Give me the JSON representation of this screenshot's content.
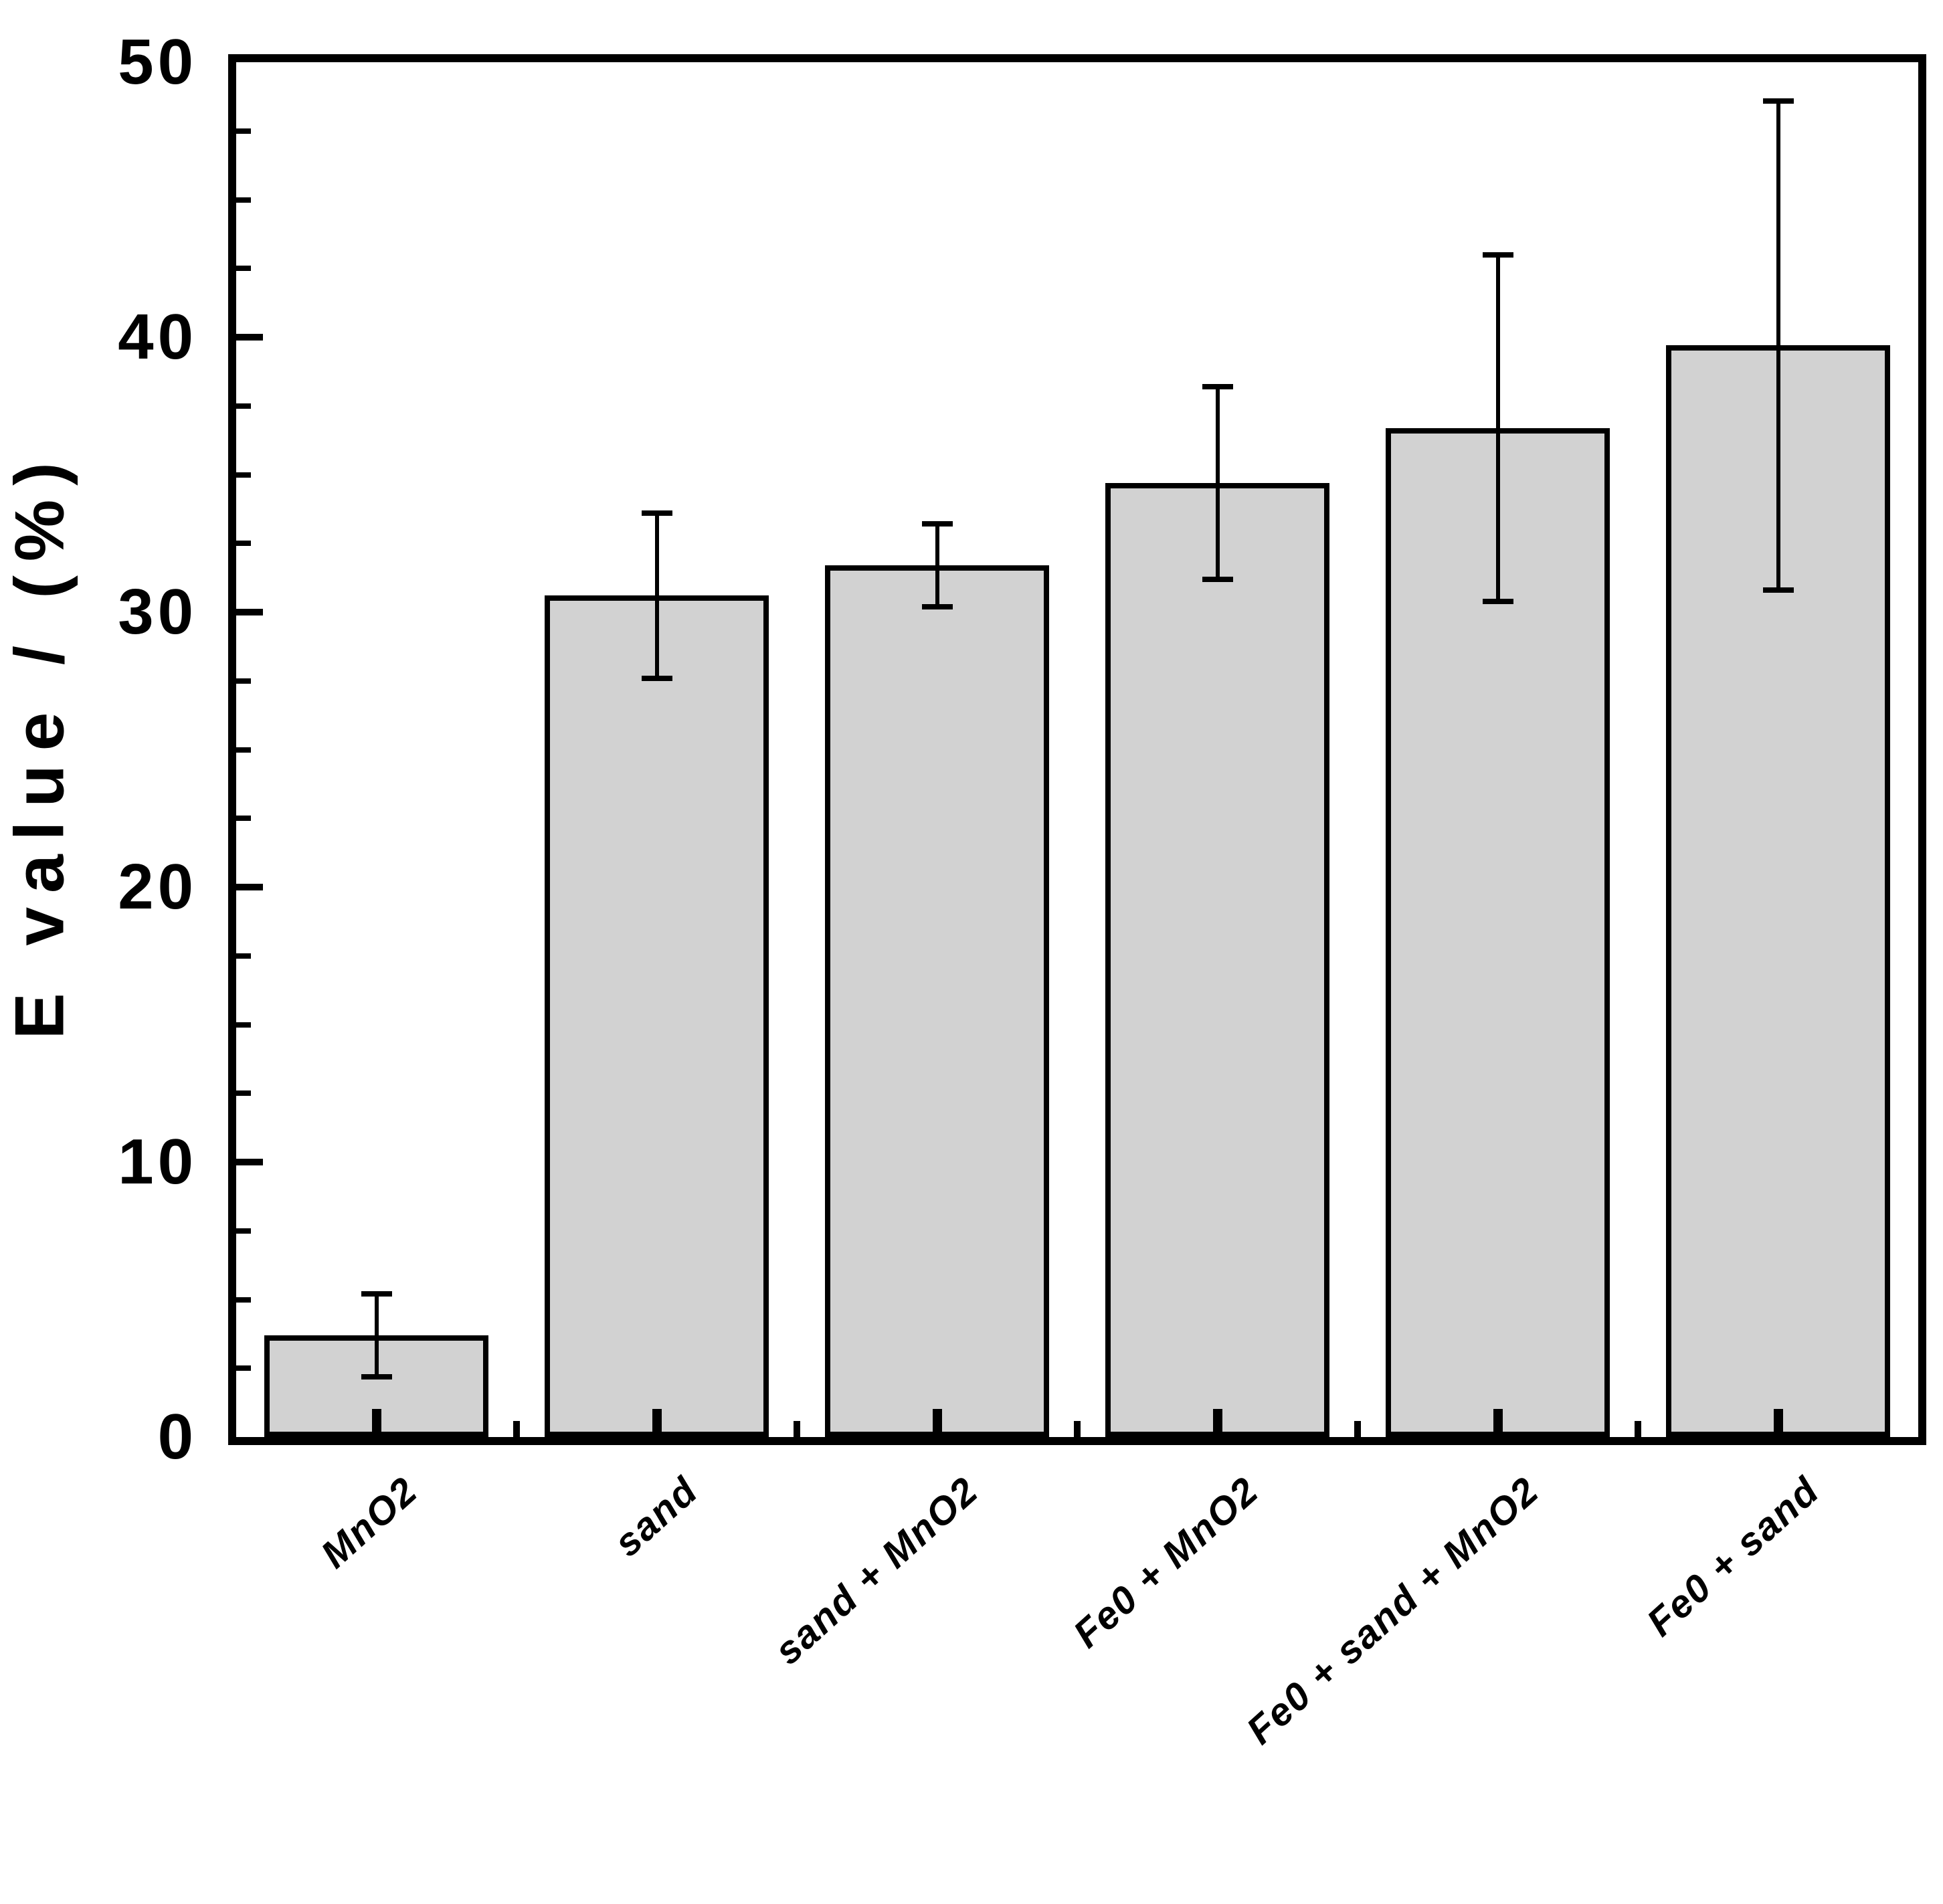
{
  "figure": {
    "background": "#ffffff"
  },
  "chart_data": {
    "type": "bar",
    "title": "",
    "xlabel": "",
    "ylabel": "E value / (%)",
    "ylim": [
      0,
      50
    ],
    "y_major_ticks": [
      0,
      10,
      20,
      30,
      40,
      50
    ],
    "y_minor_step": 2.5,
    "grid": false,
    "legend": null,
    "error_bars": true,
    "tick_direction": "in",
    "bar_fill": "#d2d2d2",
    "bar_border": "#000000",
    "axis_color": "#000000",
    "categories": [
      "MnO2",
      "sand",
      "sand + MnO2",
      "Fe0 + MnO2",
      "Fe0 + sand + MnO2",
      "Fe0 + sand"
    ],
    "series": [
      {
        "name": "E value",
        "values": [
          3.7,
          30.6,
          31.7,
          34.7,
          36.7,
          39.7
        ],
        "errors": [
          1.5,
          3.0,
          1.5,
          3.5,
          6.3,
          8.9
        ]
      }
    ]
  }
}
